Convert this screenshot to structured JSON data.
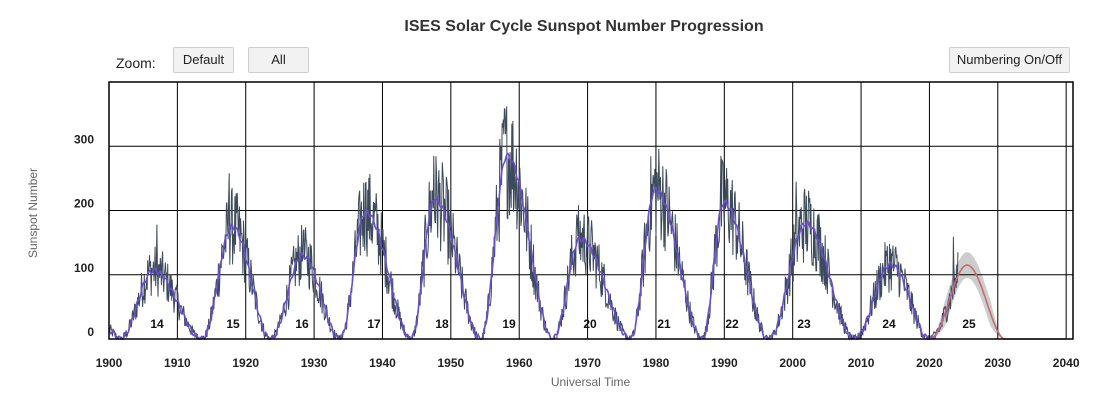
{
  "title": "ISES Solar Cycle Sunspot Number Progression",
  "toolbar": {
    "zoom_label": "Zoom:",
    "default_label": "Default",
    "all_label": "All",
    "numbering_label": "Numbering On/Off"
  },
  "colors": {
    "observed_monthly": "#3d4a5c",
    "smoothed": "#6a4fd1",
    "predicted": "#c76b6b",
    "prediction_range": "#c8c8c8",
    "grid": "#000000"
  },
  "chart_data": {
    "type": "line",
    "title": "ISES Solar Cycle Sunspot Number Progression",
    "xlabel": "Universal Time",
    "ylabel": "Sunspot Number",
    "xlim": [
      1900,
      2041
    ],
    "ylim": [
      0,
      400
    ],
    "grid": true,
    "x_ticks": [
      1900,
      1910,
      1920,
      1930,
      1940,
      1950,
      1960,
      1970,
      1980,
      1990,
      2000,
      2010,
      2020,
      2030,
      2040
    ],
    "y_ticks": [
      0,
      100,
      200,
      300
    ],
    "cycles": [
      {
        "label": "14",
        "start": 1901.5,
        "peak_year": 1906.5,
        "peak": 107,
        "end": 1913.5
      },
      {
        "label": "15",
        "start": 1913.5,
        "peak_year": 1918.0,
        "peak": 175,
        "end": 1923.5
      },
      {
        "label": "16",
        "start": 1923.5,
        "peak_year": 1928.3,
        "peak": 130,
        "end": 1933.7
      },
      {
        "label": "17",
        "start": 1933.7,
        "peak_year": 1937.5,
        "peak": 198,
        "end": 1944.1
      },
      {
        "label": "18",
        "start": 1944.1,
        "peak_year": 1947.6,
        "peak": 218,
        "end": 1954.3
      },
      {
        "label": "19",
        "start": 1954.3,
        "peak_year": 1958.2,
        "peak": 285,
        "end": 1964.8
      },
      {
        "label": "20",
        "start": 1964.8,
        "peak_year": 1968.9,
        "peak": 156,
        "end": 1976.2
      },
      {
        "label": "21",
        "start": 1976.2,
        "peak_year": 1979.9,
        "peak": 232,
        "end": 1986.7
      },
      {
        "label": "22",
        "start": 1986.7,
        "peak_year": 1989.9,
        "peak": 212,
        "end": 1996.4
      },
      {
        "label": "23",
        "start": 1996.4,
        "peak_year": 2001.9,
        "peak": 180,
        "end": 2008.9
      },
      {
        "label": "24",
        "start": 2008.9,
        "peak_year": 2014.3,
        "peak": 116,
        "end": 2019.9
      },
      {
        "label": "25",
        "start": 2019.9,
        "peak_year": 2025.5,
        "peak": 115,
        "end": 2031.0
      }
    ],
    "series": [
      {
        "values": "monthly observed sunspot number, 1900–2024"
      },
      {
        "values": "13-month smoothed sunspot number, 1900–2023"
      },
      {
        "values": "predicted cycle 25, peak ≈115 in 2025.5, tapering to 0 by 2040"
      }
    ],
    "monthly_peaks": [
      {
        "year": 1907.0,
        "value": 178
      },
      {
        "year": 1917.6,
        "value": 258
      },
      {
        "year": 1928.4,
        "value": 168
      },
      {
        "year": 1937.5,
        "value": 242
      },
      {
        "year": 1947.5,
        "value": 285
      },
      {
        "year": 1957.8,
        "value": 359
      },
      {
        "year": 1968.5,
        "value": 186
      },
      {
        "year": 1979.8,
        "value": 265
      },
      {
        "year": 1989.5,
        "value": 285
      },
      {
        "year": 2000.5,
        "value": 245
      },
      {
        "year": 2014.2,
        "value": 148
      },
      {
        "year": 2023.5,
        "value": 159
      }
    ],
    "prediction": {
      "range_halfwidth": 20,
      "end_year": 2040
    }
  }
}
